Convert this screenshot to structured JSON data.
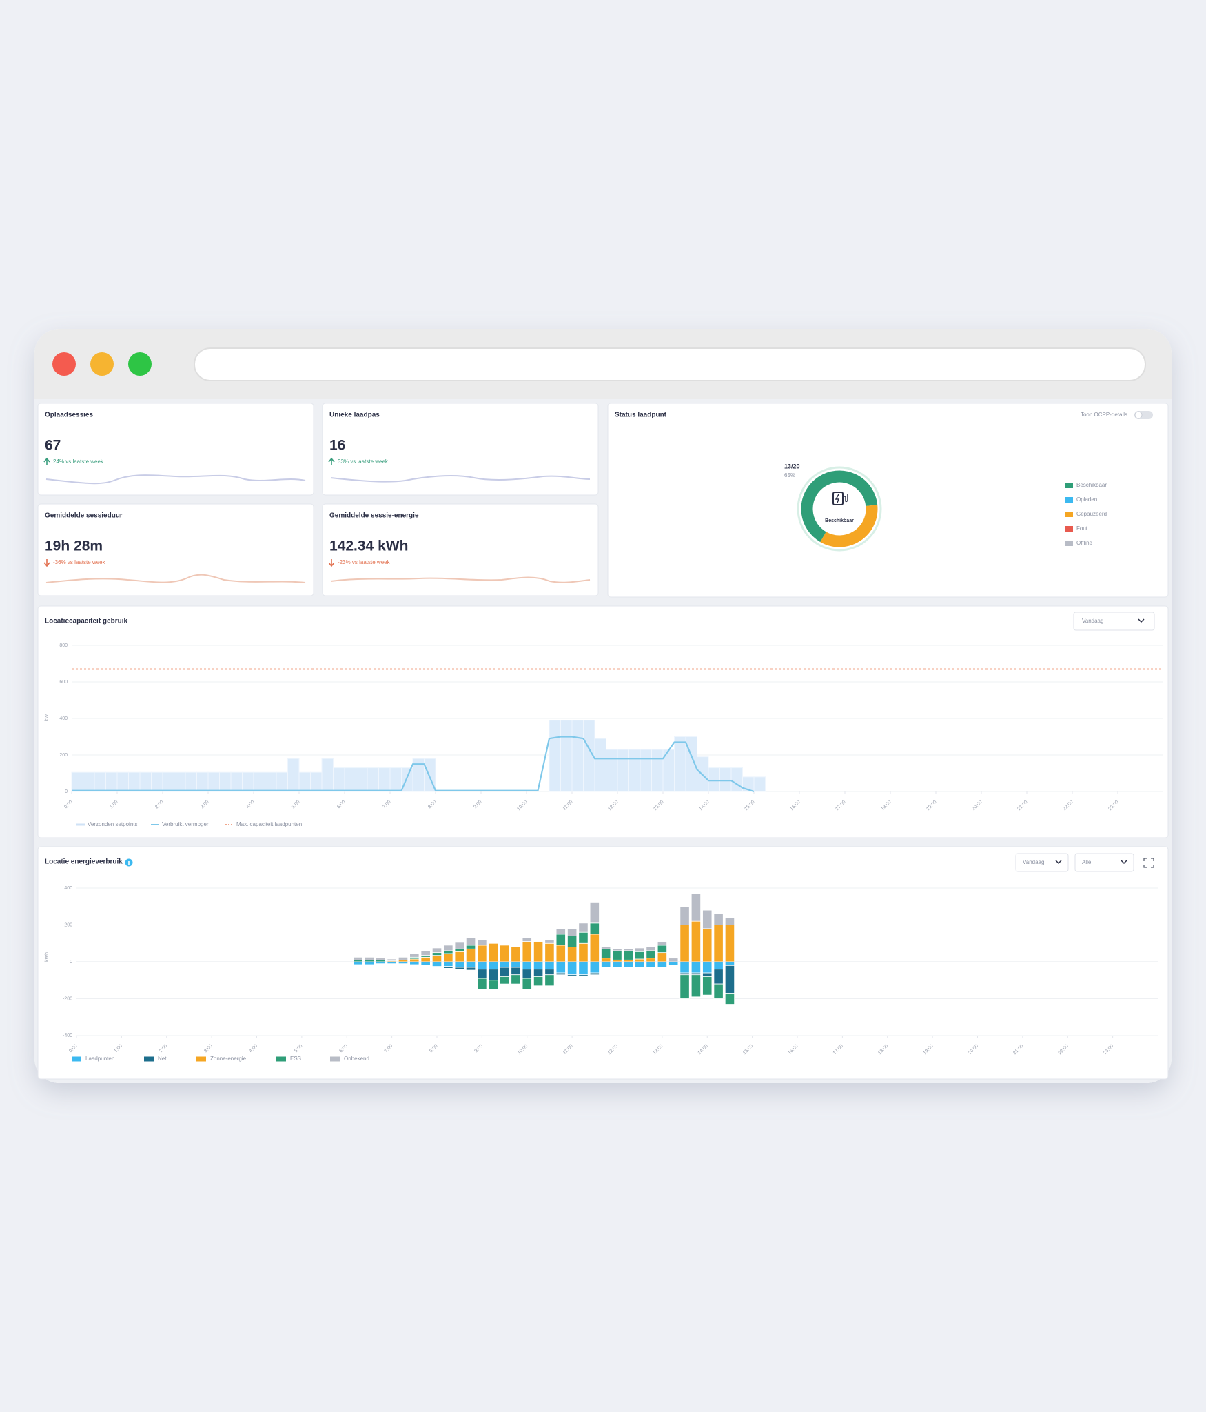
{
  "cards": [
    {
      "title": "Oplaadsessies",
      "value": "67",
      "change": "24% vs laatste week"
    },
    {
      "title": "Unieke laadpas",
      "value": "16",
      "change": "33% vs laatste week"
    },
    {
      "title": "Gemiddelde sessieduur",
      "value": "19h 28m",
      "change": "-36% vs laatste week"
    },
    {
      "title": "Gemiddelde sessie-energie",
      "value": "142.34 kWh",
      "change": "-23% vs laatste week"
    }
  ],
  "chart_data": [
    {
      "type": "pie",
      "title": "Status laadpunt",
      "toggle_label": "Toon OCPP-details",
      "center_label": "Beschikbaar",
      "annotations": [
        "13/20",
        "65%"
      ],
      "categories": [
        "Beschikbaar",
        "Opladen",
        "Gepauzeerd",
        "Fout",
        "Offline"
      ],
      "values": [
        13,
        0,
        7,
        0,
        0
      ],
      "colors": [
        "#2f9e78",
        "#3cb9f0",
        "#f5a623",
        "#e85a4f",
        "#b8bcc6"
      ]
    },
    {
      "type": "combo",
      "title": "Locatiecapaciteit gebruik",
      "control": "Vandaag",
      "ylabel": "kW",
      "x": [
        0,
        0.25,
        0.5,
        0.75,
        1,
        1.25,
        1.5,
        1.75,
        2,
        2.25,
        2.5,
        2.75,
        3,
        3.25,
        3.5,
        3.75,
        4,
        4.25,
        4.5,
        4.75,
        5,
        5.25,
        5.5,
        5.75,
        6,
        6.25,
        6.5,
        6.75,
        7,
        7.25,
        7.5,
        7.75,
        8,
        8.25,
        8.5,
        8.75,
        9,
        9.25,
        9.5,
        9.75,
        10,
        10.25,
        10.5,
        10.75,
        11,
        11.25,
        11.5,
        11.75,
        12,
        12.25,
        12.5,
        12.75,
        13,
        13.25,
        13.5,
        13.75,
        14,
        14.25,
        14.5,
        14.75,
        15
      ],
      "series": [
        {
          "name": "Verzonden setpoints",
          "type": "bar",
          "color": "#dcebfa",
          "values": [
            105,
            105,
            105,
            105,
            105,
            105,
            105,
            105,
            105,
            105,
            105,
            105,
            105,
            105,
            105,
            105,
            105,
            105,
            105,
            180,
            105,
            105,
            180,
            130,
            130,
            130,
            130,
            130,
            130,
            130,
            180,
            180,
            0,
            0,
            0,
            0,
            0,
            0,
            0,
            0,
            0,
            0,
            390,
            390,
            390,
            390,
            290,
            230,
            230,
            230,
            230,
            230,
            230,
            300,
            300,
            190,
            130,
            130,
            130,
            80,
            80
          ]
        },
        {
          "name": "Verbruikt vermogen",
          "type": "line",
          "color": "#7fc8ea",
          "values": [
            5,
            5,
            5,
            5,
            5,
            5,
            5,
            5,
            5,
            5,
            5,
            5,
            5,
            5,
            5,
            5,
            5,
            5,
            5,
            5,
            5,
            5,
            5,
            5,
            5,
            5,
            5,
            5,
            5,
            5,
            150,
            150,
            5,
            5,
            5,
            5,
            5,
            5,
            5,
            5,
            5,
            5,
            290,
            300,
            300,
            290,
            180,
            180,
            180,
            180,
            180,
            180,
            180,
            270,
            270,
            120,
            60,
            60,
            60,
            20,
            0
          ]
        }
      ],
      "reference_line": {
        "name": "Max. capaciteit laadpunten",
        "value": 670,
        "color": "#f0a58a"
      },
      "xlim": [
        0,
        24
      ],
      "xticks": [
        {
          "value": 0,
          "label": "0:00"
        },
        {
          "value": 1,
          "label": "1:00"
        },
        {
          "value": 2,
          "label": "2:00"
        },
        {
          "value": 3,
          "label": "3:00"
        },
        {
          "value": 4,
          "label": "4:00"
        },
        {
          "value": 5,
          "label": "5:00"
        },
        {
          "value": 6,
          "label": "6:00"
        },
        {
          "value": 7,
          "label": "7:00"
        },
        {
          "value": 8,
          "label": "8:00"
        },
        {
          "value": 9,
          "label": "9:00"
        },
        {
          "value": 10,
          "label": "10:00"
        },
        {
          "value": 11,
          "label": "11:00"
        },
        {
          "value": 12,
          "label": "12:00"
        },
        {
          "value": 13,
          "label": "13:00"
        },
        {
          "value": 14,
          "label": "14:00"
        },
        {
          "value": 15,
          "label": "15:00"
        },
        {
          "value": 16,
          "label": "16:00"
        },
        {
          "value": 17,
          "label": "17:00"
        },
        {
          "value": 18,
          "label": "18:00"
        },
        {
          "value": 19,
          "label": "19:00"
        },
        {
          "value": 20,
          "label": "20:00"
        },
        {
          "value": 21,
          "label": "21:00"
        },
        {
          "value": 22,
          "label": "22:00"
        },
        {
          "value": 23,
          "label": "23:00"
        }
      ],
      "ylim": [
        0,
        800
      ],
      "yticks": [
        0,
        200,
        400,
        600,
        800
      ],
      "grid": true
    },
    {
      "type": "bar",
      "stacked": true,
      "title": "Locatie energieverbruik",
      "controls": [
        "Vandaag",
        "Alle"
      ],
      "ylabel": "kWh",
      "x": [
        6.25,
        6.5,
        6.75,
        7,
        7.25,
        7.5,
        7.75,
        8,
        8.25,
        8.5,
        8.75,
        9,
        9.25,
        9.5,
        9.75,
        10,
        10.25,
        10.5,
        10.75,
        11,
        11.25,
        11.5,
        11.75,
        12,
        12.25,
        12.5,
        12.75,
        13,
        13.25,
        13.5,
        13.75,
        14,
        14.25,
        14.5
      ],
      "series": [
        {
          "name": "Laadpunten",
          "color": "#3cb9f0",
          "values": [
            -15,
            -15,
            -10,
            -10,
            -10,
            -15,
            -20,
            -25,
            -25,
            -30,
            -30,
            -40,
            -40,
            -30,
            -30,
            -40,
            -40,
            -40,
            -60,
            -70,
            -70,
            -60,
            -30,
            -30,
            -30,
            -30,
            -30,
            -30,
            -20,
            -60,
            -60,
            -60,
            -40,
            -20
          ]
        },
        {
          "name": "Net",
          "color": "#1d6e8c",
          "values": [
            0,
            0,
            0,
            0,
            0,
            0,
            0,
            -5,
            -10,
            -10,
            -15,
            -50,
            -60,
            -50,
            -40,
            -50,
            -40,
            -30,
            -10,
            -10,
            -10,
            -10,
            0,
            0,
            0,
            0,
            0,
            0,
            0,
            -10,
            -10,
            -20,
            -80,
            -150
          ]
        },
        {
          "name": "Zonne-energie",
          "color": "#f5a623",
          "values": [
            0,
            0,
            0,
            5,
            10,
            15,
            25,
            35,
            45,
            55,
            70,
            90,
            100,
            90,
            80,
            110,
            110,
            100,
            90,
            80,
            100,
            150,
            20,
            10,
            10,
            15,
            20,
            50,
            0,
            200,
            220,
            180,
            200,
            200
          ]
        },
        {
          "name": "ESS",
          "color": "#2f9e78",
          "values": [
            10,
            10,
            10,
            0,
            0,
            10,
            10,
            15,
            15,
            15,
            20,
            -60,
            -50,
            -40,
            -50,
            -60,
            -50,
            -60,
            60,
            60,
            60,
            60,
            50,
            50,
            50,
            40,
            40,
            40,
            0,
            -130,
            -120,
            -100,
            -80,
            -60
          ]
        },
        {
          "name": "Onbekend",
          "color": "#b8bcc6",
          "values": [
            15,
            15,
            10,
            10,
            15,
            20,
            25,
            25,
            30,
            35,
            40,
            30,
            0,
            0,
            0,
            20,
            0,
            20,
            30,
            40,
            50,
            110,
            10,
            10,
            10,
            20,
            20,
            20,
            20,
            100,
            150,
            100,
            60,
            40
          ]
        }
      ],
      "xlim": [
        0,
        24
      ],
      "xticks": [
        {
          "value": 0,
          "label": "0:00"
        },
        {
          "value": 1,
          "label": "1:00"
        },
        {
          "value": 2,
          "label": "2:00"
        },
        {
          "value": 3,
          "label": "3:00"
        },
        {
          "value": 4,
          "label": "4:00"
        },
        {
          "value": 5,
          "label": "5:00"
        },
        {
          "value": 6,
          "label": "6:00"
        },
        {
          "value": 7,
          "label": "7:00"
        },
        {
          "value": 8,
          "label": "8:00"
        },
        {
          "value": 9,
          "label": "9:00"
        },
        {
          "value": 10,
          "label": "10:00"
        },
        {
          "value": 11,
          "label": "11:00"
        },
        {
          "value": 12,
          "label": "12:00"
        },
        {
          "value": 13,
          "label": "13:00"
        },
        {
          "value": 14,
          "label": "14:00"
        },
        {
          "value": 15,
          "label": "15:00"
        },
        {
          "value": 16,
          "label": "16:00"
        },
        {
          "value": 17,
          "label": "17:00"
        },
        {
          "value": 18,
          "label": "18:00"
        },
        {
          "value": 19,
          "label": "19:00"
        },
        {
          "value": 20,
          "label": "20:00"
        },
        {
          "value": 21,
          "label": "21:00"
        },
        {
          "value": 22,
          "label": "22:00"
        },
        {
          "value": 23,
          "label": "23:00"
        }
      ],
      "ylim": [
        -400,
        400
      ],
      "yticks": [
        -400,
        -200,
        0,
        200,
        400
      ],
      "grid": true
    }
  ]
}
